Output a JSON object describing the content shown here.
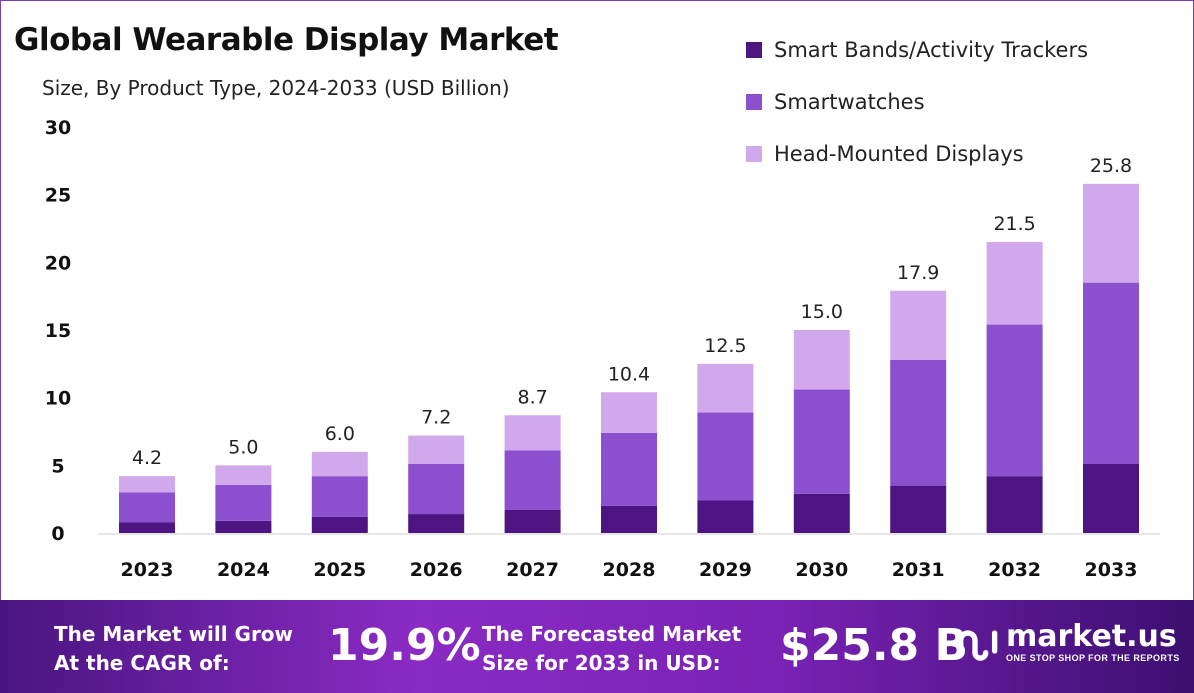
{
  "chart_data": {
    "type": "bar",
    "stacked": true,
    "title": "Global Wearable Display Market",
    "subtitle": "Size, By Product Type, 2024-2033 (USD Billion)",
    "xlabel": "",
    "ylabel": "",
    "ylim": [
      0,
      30
    ],
    "yticks": [
      0,
      5,
      10,
      15,
      20,
      25,
      30
    ],
    "grid": false,
    "legend_position": "top-right",
    "categories": [
      "2023",
      "2024",
      "2025",
      "2026",
      "2027",
      "2028",
      "2029",
      "2030",
      "2031",
      "2032",
      "2033"
    ],
    "series": [
      {
        "name": "Smart Bands/Activity Trackers",
        "color": "#4e1582",
        "values": [
          0.8,
          0.9,
          1.2,
          1.4,
          1.7,
          2.0,
          2.4,
          2.9,
          3.5,
          4.2,
          5.1
        ]
      },
      {
        "name": "Smartwatches",
        "color": "#8c4fce",
        "values": [
          2.2,
          2.65,
          3.0,
          3.7,
          4.4,
          5.4,
          6.5,
          7.7,
          9.3,
          11.2,
          13.4
        ]
      },
      {
        "name": "Head-Mounted Displays",
        "color": "#d2a8ec",
        "values": [
          1.2,
          1.45,
          1.8,
          2.1,
          2.6,
          3.0,
          3.6,
          4.4,
          5.1,
          6.1,
          7.3
        ]
      }
    ],
    "totals": [
      4.2,
      5.0,
      6.0,
      7.2,
      8.7,
      10.4,
      12.5,
      15.0,
      17.9,
      21.5,
      25.8
    ],
    "total_labels": [
      "4.2",
      "5.0",
      "6.0",
      "7.2",
      "8.7",
      "10.4",
      "12.5",
      "15.0",
      "17.9",
      "21.5",
      "25.8"
    ]
  },
  "footer": {
    "cagr_text_1": "The Market will Grow",
    "cagr_text_2": "At the CAGR of:",
    "cagr_value": "19.9%",
    "forecast_text_1": "The Forecasted Market",
    "forecast_text_2": "Size for 2033 in USD:",
    "forecast_value": "$25.8 B",
    "logo_name": "market.us",
    "logo_tagline": "ONE STOP SHOP FOR THE REPORTS"
  }
}
